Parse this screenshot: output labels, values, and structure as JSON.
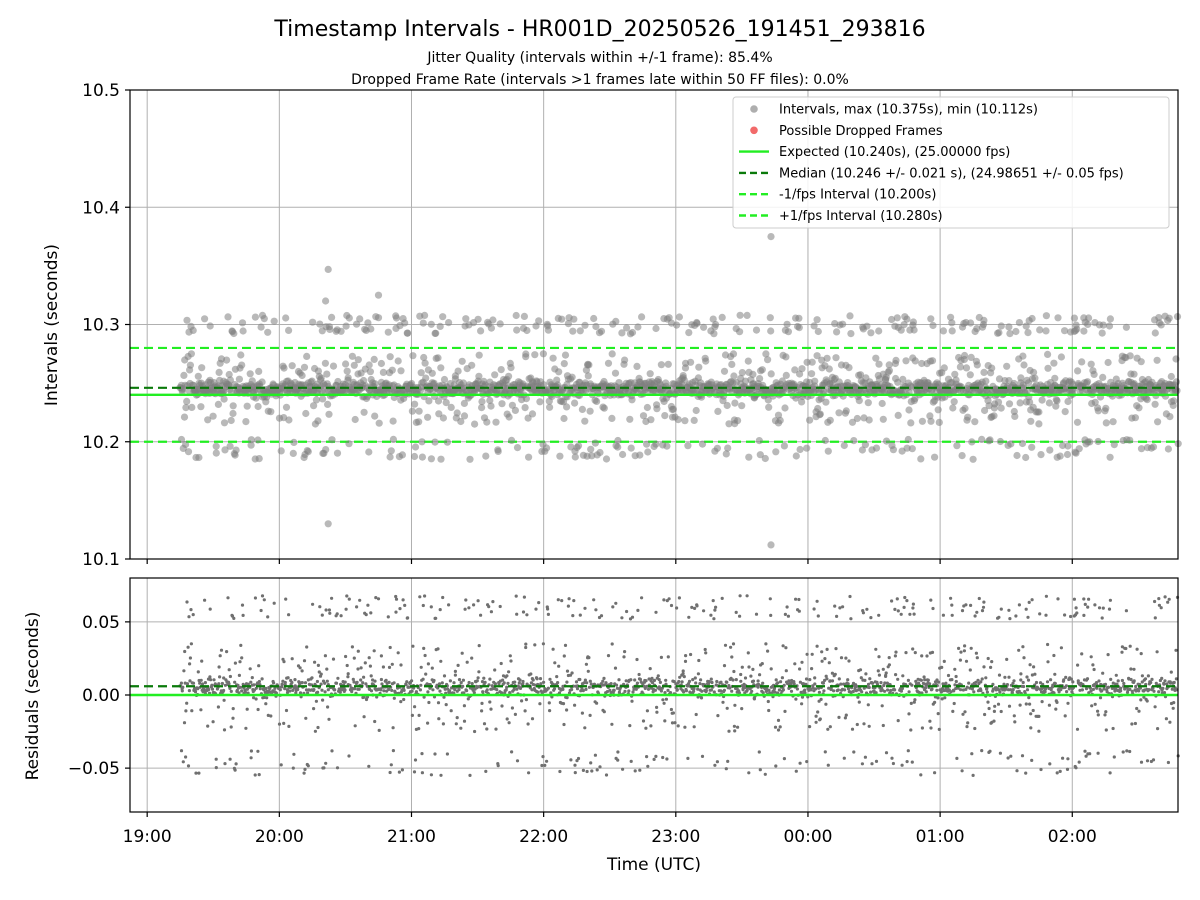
{
  "title": "Timestamp Intervals - HR001D_20250526_191451_293816",
  "subtitle1": "Jitter Quality (intervals within +/-1 frame): 85.4%",
  "subtitle2": "Dropped Frame Rate (intervals >1 frames late within 50 FF files): 0.0%",
  "colors": {
    "points": "#808080",
    "dropped": "#f05050",
    "expected": "#22ee22",
    "median": "#0a7a0a",
    "fps_bounds": "#22ee22",
    "grid": "#b0b0b0"
  },
  "chart_data": [
    {
      "type": "scatter",
      "panel": "top",
      "ylabel": "Intervals (seconds)",
      "xlabel": "",
      "ylim": [
        10.1,
        10.5
      ],
      "xlim_hours": [
        18.87,
        26.8
      ],
      "yticks": [
        10.1,
        10.2,
        10.3,
        10.4,
        10.5
      ],
      "ytick_labels": [
        "10.1",
        "10.2",
        "10.3",
        "10.4",
        "10.5"
      ],
      "grid": true,
      "legend_position": "top-right",
      "legend": [
        {
          "label": "Intervals, max (10.375s), min (10.112s)",
          "kind": "point",
          "color": "#a0a0a0"
        },
        {
          "label": "Possible Dropped Frames",
          "kind": "point",
          "color": "#f05050"
        },
        {
          "label": "Expected (10.240s), (25.00000 fps)",
          "kind": "solid",
          "color": "#22ee22"
        },
        {
          "label": "Median (10.246 +/- 0.021 s), (24.98651 +/- 0.05 fps)",
          "kind": "dashed",
          "color": "#0a7a0a"
        },
        {
          "label": "-1/fps Interval (10.200s)",
          "kind": "dashed",
          "color": "#22ee22"
        },
        {
          "label": "+1/fps Interval (10.280s)",
          "kind": "dashed",
          "color": "#22ee22"
        }
      ],
      "reference_lines": {
        "expected": 10.24,
        "median": 10.246,
        "minus_fps": 10.2,
        "plus_fps": 10.28
      },
      "series": {
        "x_start_hours": 19.25,
        "x_end_hours": 26.8,
        "count": 2200,
        "center": 10.245,
        "max": 10.375,
        "min": 10.112,
        "notable_points": [
          [
            23.72,
            10.375
          ],
          [
            23.72,
            10.112
          ],
          [
            20.37,
            10.347
          ],
          [
            20.37,
            10.13
          ],
          [
            20.75,
            10.325
          ],
          [
            20.35,
            10.32
          ]
        ]
      }
    },
    {
      "type": "scatter",
      "panel": "bottom",
      "ylabel": "Residuals (seconds)",
      "xlabel": "Time (UTC)",
      "ylim": [
        -0.08,
        0.08
      ],
      "xlim_hours": [
        18.87,
        26.8
      ],
      "yticks": [
        0.05,
        0.0,
        -0.05
      ],
      "ytick_labels": [
        "0.05",
        "0.00",
        "−0.05"
      ],
      "xticks_hours": [
        19,
        20,
        21,
        22,
        23,
        24,
        25,
        26
      ],
      "xtick_labels": [
        "19:00",
        "20:00",
        "21:00",
        "22:00",
        "23:00",
        "00:00",
        "01:00",
        "02:00"
      ],
      "grid": true,
      "reference_lines": {
        "zero": 0.0,
        "median_offset": 0.006
      }
    }
  ]
}
